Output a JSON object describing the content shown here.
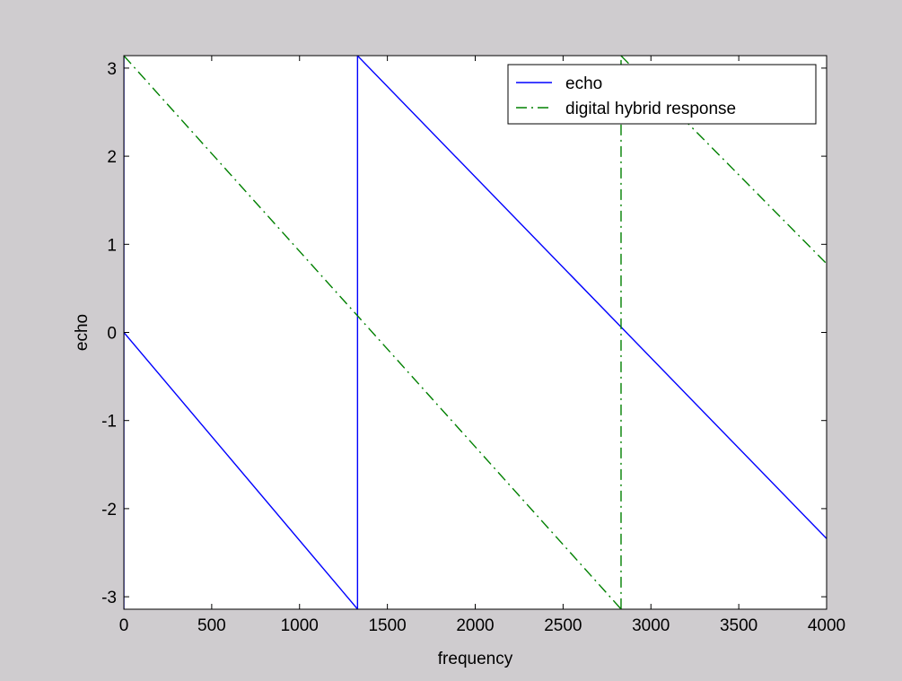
{
  "chart_data": {
    "type": "line",
    "title": "",
    "xlabel": "frequency",
    "ylabel": "echo",
    "xlim": [
      0,
      4000
    ],
    "ylim": [
      -3.1416,
      3.1416
    ],
    "x_ticks": [
      0,
      500,
      1000,
      1500,
      2000,
      2500,
      3000,
      3500,
      4000
    ],
    "x_tick_labels": [
      "0",
      "500",
      "1000",
      "1500",
      "2000",
      "2500",
      "3000",
      "3500",
      "4000"
    ],
    "y_ticks": [
      3,
      2,
      1,
      0,
      -1,
      -2,
      -3
    ],
    "y_tick_labels": [
      "3",
      "2",
      "1",
      "0",
      "-1",
      "-2",
      "-3"
    ],
    "grid": false,
    "legend_position": "top-right",
    "series": [
      {
        "name": "echo",
        "color": "#0000ff",
        "style": "solid",
        "segments": [
          [
            [
              0,
              3.14
            ],
            [
              0,
              -3.14
            ]
          ],
          [
            [
              0,
              0
            ],
            [
              1330,
              -3.14
            ]
          ],
          [
            [
              1330,
              -3.14
            ],
            [
              1330,
              3.14
            ]
          ],
          [
            [
              1330,
              3.14
            ],
            [
              4000,
              -2.34
            ]
          ]
        ]
      },
      {
        "name": "digital hybrid response",
        "color": "#008000",
        "style": "dashdot",
        "segments": [
          [
            [
              0,
              3.14
            ],
            [
              2830,
              -3.14
            ]
          ],
          [
            [
              2830,
              -3.14
            ],
            [
              2830,
              3.14
            ]
          ],
          [
            [
              2830,
              3.14
            ],
            [
              4000,
              0.78
            ]
          ]
        ]
      }
    ]
  }
}
